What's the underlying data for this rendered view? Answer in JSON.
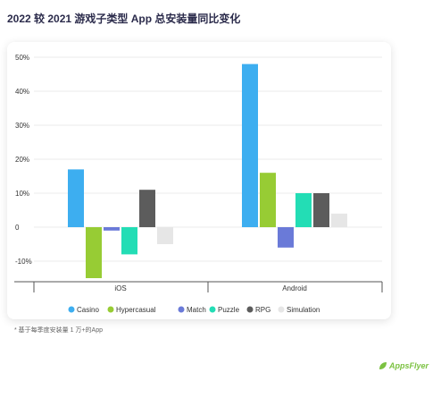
{
  "title": "2022 较 2021 游戏子类型 App 总安装量同比变化",
  "footnote": "* 基于每季度安装量 1 万+的App",
  "brand": {
    "name": "AppsFlyer",
    "color": "#7cc242"
  },
  "chart_data": {
    "type": "bar",
    "title": "2022 较 2021 游戏子类型 App 总安装量同比变化",
    "xlabel": "",
    "ylabel": "",
    "ylim": [
      -15,
      50
    ],
    "yticks": [
      50,
      40,
      30,
      20,
      10,
      0,
      -10
    ],
    "ytick_labels": [
      "50%",
      "40%",
      "30%",
      "20%",
      "10%",
      "0",
      "-10%"
    ],
    "categories": [
      "iOS",
      "Android"
    ],
    "legend_position": "bottom",
    "grid": true,
    "series": [
      {
        "name": "Casino",
        "color": "#3daef0",
        "values": [
          17,
          48
        ]
      },
      {
        "name": "Hypercasual",
        "color": "#97cc34",
        "values": [
          -15,
          16
        ]
      },
      {
        "name": "Match",
        "color": "#6a7ad8",
        "values": [
          -1,
          -6
        ]
      },
      {
        "name": "Puzzle",
        "color": "#23ddb5",
        "values": [
          -8,
          10
        ]
      },
      {
        "name": "RPG",
        "color": "#5c5c5c",
        "values": [
          11,
          10
        ]
      },
      {
        "name": "Simulation",
        "color": "#e6e6e6",
        "values": [
          -5,
          4
        ]
      }
    ]
  }
}
